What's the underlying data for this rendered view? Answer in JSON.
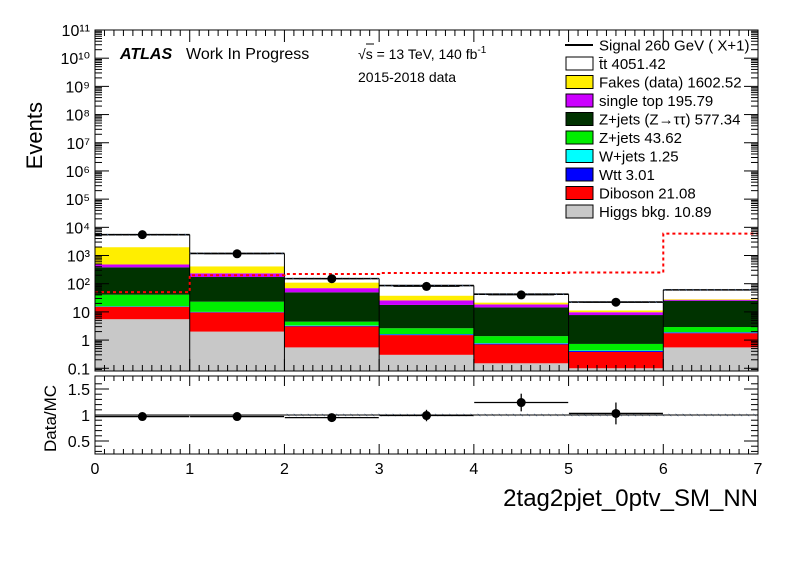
{
  "header": {
    "atlas": "ATLAS",
    "status": "Work In Progress",
    "energy_prefix": "s",
    "energy": " = 13 TeV, 140 fb",
    "energy_exp": "-1",
    "dataset": "2015-2018 data"
  },
  "chart_data": [
    {
      "type": "bar",
      "stacked": true,
      "log_y": true,
      "ylabel": "Events",
      "xlabel": "2tag2pjet_0ptv_SM_NN",
      "xlim": [
        0,
        7
      ],
      "ylim": [
        0.08,
        100000000000
      ],
      "y_ticks": [
        "0.1",
        "1",
        "10",
        "10²",
        "10³",
        "10⁴",
        "10⁵",
        "10⁶",
        "10⁷",
        "10⁸",
        "10⁹",
        "10¹⁰",
        "10¹¹"
      ],
      "x_ticks": [
        "0",
        "1",
        "2",
        "3",
        "4",
        "5",
        "6",
        "7"
      ],
      "bin_edges": [
        0,
        1,
        2,
        3,
        4,
        5,
        6,
        7
      ],
      "legend_position": "top-right",
      "series": [
        {
          "name": "Higgs bkg. 10.89",
          "color": "#c8c8c8",
          "values": [
            5.5,
            2.0,
            0.55,
            0.3,
            0.15,
            0.1,
            0.55
          ]
        },
        {
          "name": "Diboson 21.08",
          "color": "#ff0000",
          "values": [
            9.5,
            7.5,
            2.5,
            1.2,
            0.55,
            0.28,
            1.2
          ]
        },
        {
          "name": "Wtt 3.01",
          "color": "#0000ff",
          "values": [
            0.4,
            0.3,
            0.15,
            0.08,
            0.05,
            0.03,
            0.1
          ]
        },
        {
          "name": "W+jets 1.25",
          "color": "#00ffff",
          "values": [
            0.3,
            0.2,
            0.1,
            0.05,
            0.03,
            0.02,
            0.05
          ]
        },
        {
          "name": "Z+jets 43.62",
          "color": "#00ee00",
          "values": [
            25,
            13,
            1.2,
            1.0,
            0.6,
            0.3,
            1.0
          ]
        },
        {
          "name": "Z+jets (Z→ττ) 577.34",
          "color": "#003300",
          "values": [
            340,
            150,
            45,
            15,
            13,
            7,
            22
          ]
        },
        {
          "name": "single top 195.79",
          "color": "#cc00ff",
          "values": [
            100,
            60,
            20,
            8,
            4,
            2,
            2
          ]
        },
        {
          "name": "Fakes (data) 1602.52",
          "color": "#ffee00",
          "values": [
            1500,
            180,
            40,
            12,
            3,
            1.5,
            1.5
          ]
        },
        {
          "name": "t̄t 4051.42",
          "color": "#ffffff",
          "values": [
            3500,
            770,
            42,
            48,
            21,
            11,
            32
          ]
        }
      ],
      "signal": {
        "name": "Signal 260 GeV ( X+1)",
        "color": "#ff0000",
        "values": [
          50,
          200,
          220,
          240,
          240,
          250,
          6000
        ]
      },
      "data": {
        "x": [
          0.5,
          1.5,
          2.5,
          3.5,
          4.5,
          5.5
        ],
        "y": [
          5500,
          1150,
          150,
          80,
          40,
          22
        ]
      }
    },
    {
      "type": "scatter",
      "ylabel": "Data/MC",
      "ylim": [
        0.25,
        1.75
      ],
      "y_ticks": [
        "0.5",
        "1",
        "1.5"
      ],
      "x": [
        0.5,
        1.5,
        2.5,
        3.5,
        4.5,
        5.5
      ],
      "y": [
        0.97,
        0.97,
        0.95,
        0.99,
        1.24,
        1.03
      ],
      "y_err": [
        0.02,
        0.03,
        0.08,
        0.11,
        0.17,
        0.21
      ],
      "band": "hatched MC uncertainty around 1"
    }
  ]
}
